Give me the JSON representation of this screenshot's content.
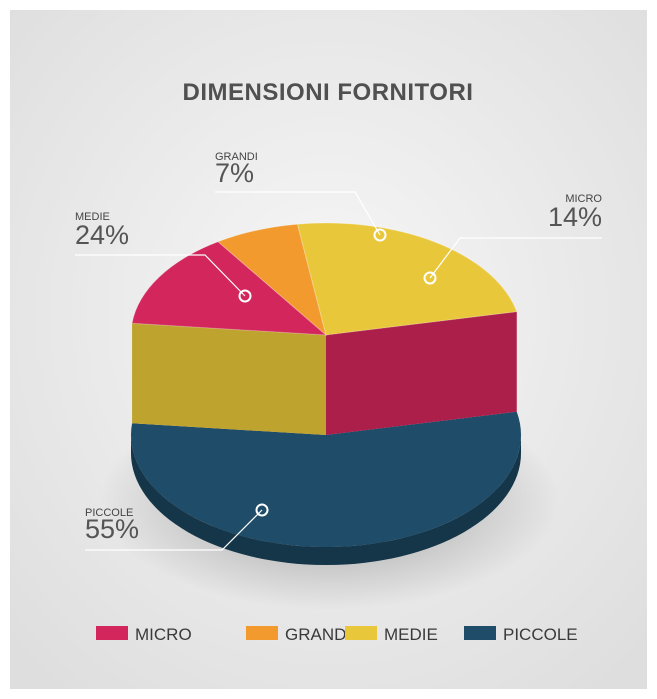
{
  "chart_data": {
    "type": "pie3d",
    "title": "DIMENSIONI FORNITORI",
    "categories": [
      "MICRO",
      "GRANDI",
      "MEDIE",
      "PICCOLE"
    ],
    "values": [
      14,
      7,
      24,
      55
    ],
    "value_labels": [
      "14%",
      "7%",
      "24%",
      "55%"
    ],
    "colors": [
      "#d2265c",
      "#f29a2e",
      "#e9c73a",
      "#1f4c68"
    ],
    "legend": "bottom"
  }
}
